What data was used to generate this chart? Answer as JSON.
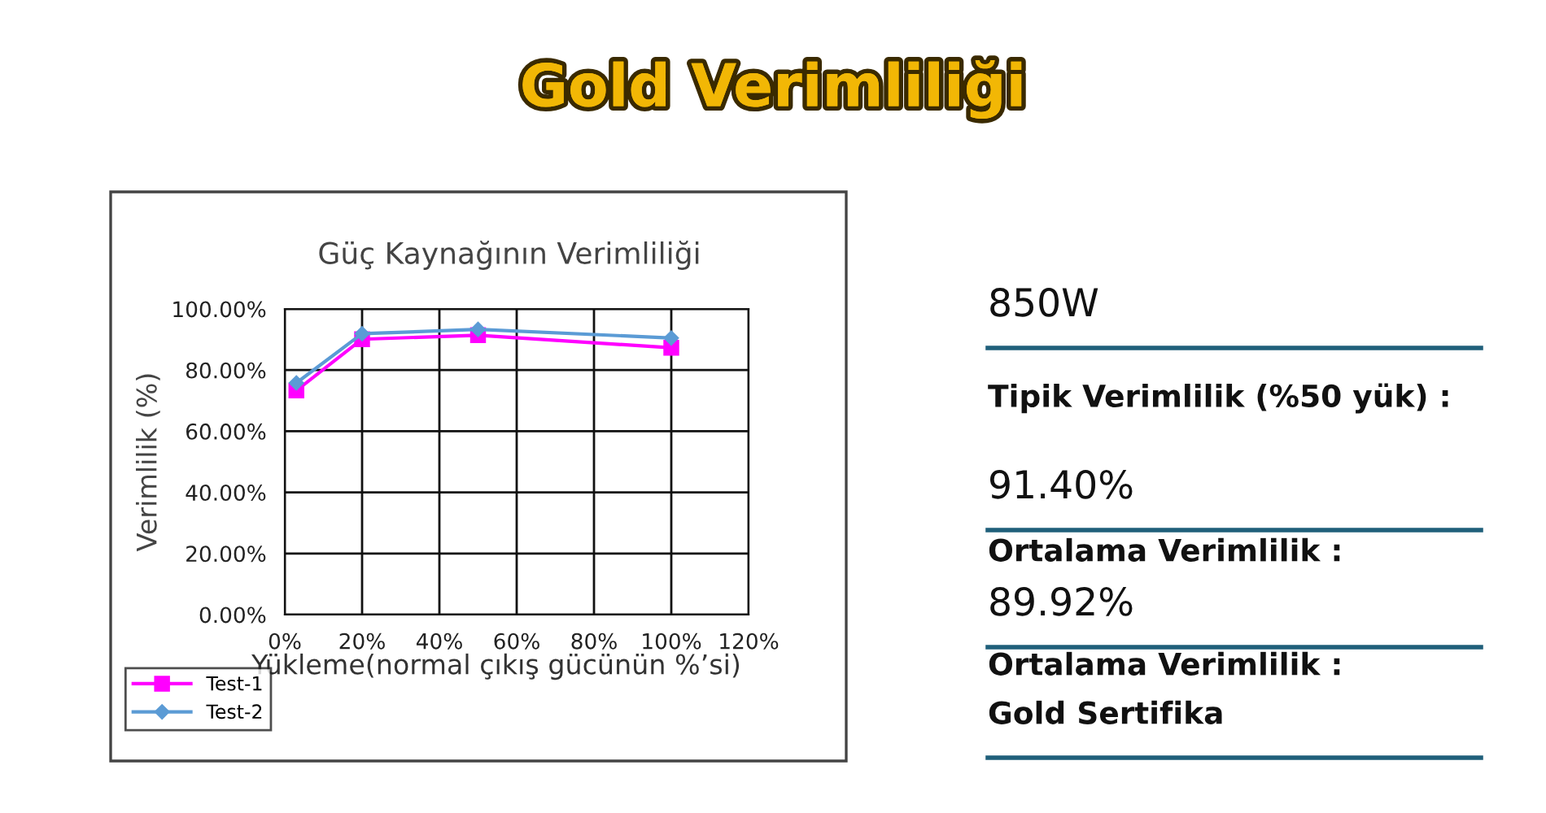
{
  "chart_data": [
    {
      "type": "line",
      "title": "Güç Kaynağının Verimliliği",
      "xlabel": "Yükleme(normal çıkış gücünün %’si)",
      "ylabel": "Verimlilik (%)",
      "x": [
        3,
        20,
        50,
        100
      ],
      "series": [
        {
          "name": "Test-1",
          "color": "#ff00ff",
          "marker": "square",
          "values": [
            73.3,
            90.1,
            91.4,
            87.3
          ]
        },
        {
          "name": "Test-2",
          "color": "#5b9bd5",
          "marker": "diamond",
          "values": [
            75.8,
            91.9,
            93.3,
            90.5
          ]
        }
      ],
      "xlim": [
        0,
        120
      ],
      "ylim": [
        0,
        100
      ],
      "xticks": [
        {
          "value": 0,
          "label": "0%"
        },
        {
          "value": 20,
          "label": "20%"
        },
        {
          "value": 40,
          "label": "40%"
        },
        {
          "value": 60,
          "label": "60%"
        },
        {
          "value": 80,
          "label": "80%"
        },
        {
          "value": 100,
          "label": "100%"
        },
        {
          "value": 120,
          "label": "120%"
        }
      ],
      "yticks": [
        {
          "value": 0,
          "label": "0.00%"
        },
        {
          "value": 20,
          "label": "20.00%"
        },
        {
          "value": 40,
          "label": "40.00%"
        },
        {
          "value": 60,
          "label": "60.00%"
        },
        {
          "value": 80,
          "label": "80.00%"
        },
        {
          "value": 100,
          "label": "100.00%"
        }
      ],
      "grid": true,
      "legend": "bottom left",
      "line_style": "solid"
    },
    {
      "type": "other",
      "title": "Gold Verimliliği",
      "annotations": [
        "850W",
        "Tipik Verimlilik (%50 yük) :",
        "91.40%",
        "Ortalama Verimlilik :",
        "89.92%",
        "Ortalama Verimlilik :",
        "Gold Sertifika"
      ]
    }
  ]
}
